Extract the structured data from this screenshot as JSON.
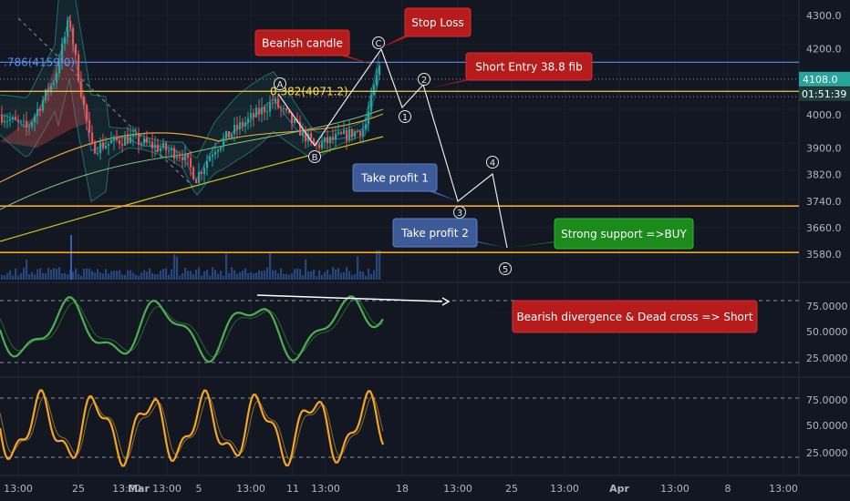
{
  "chart_data": [
    {
      "type": "candlestick",
      "panel": "price",
      "y_axis": {
        "min": 3520,
        "max": 4340,
        "ticks": [
          "4300.0",
          "4200.0",
          "4100.0",
          "4000.0",
          "3900.0",
          "3820.0",
          "3740.0",
          "3660.0",
          "3580.0"
        ]
      },
      "last_price": {
        "label": "4108.0",
        "value": 4108.0,
        "color": "#26a69a"
      },
      "countdown": "01:51:39",
      "fib_label": ".786(4159.0)",
      "fib_label_2": "0.382(4071.2)",
      "wave_labels": [
        "A",
        "B",
        "C",
        "1",
        "2",
        "3",
        "4",
        "5"
      ],
      "horizontal_levels": [
        {
          "value": 4159.0,
          "color": "#5b8dee"
        },
        {
          "value": 4071.2,
          "color": "#f7c948"
        },
        {
          "value": 3725,
          "color": "#f7a823"
        },
        {
          "value": 3585,
          "color": "#f7a823"
        }
      ],
      "annotations": [
        {
          "text": "Bearish candle",
          "style": "red"
        },
        {
          "text": "Stop Loss",
          "style": "red"
        },
        {
          "text": "Short Entry 38.8 fib",
          "style": "red"
        },
        {
          "text": "Take profit 1",
          "style": "blue"
        },
        {
          "text": "Take profit 2",
          "style": "blue"
        },
        {
          "text": "Strong support =>BUY",
          "style": "green"
        }
      ]
    },
    {
      "type": "line",
      "panel": "indicator-1",
      "y_axis": {
        "ticks": [
          "75.0000",
          "50.0000",
          "25.0000"
        ]
      },
      "annotation": {
        "text": "Bearish divergence & Dead cross => Short",
        "style": "red"
      }
    },
    {
      "type": "line",
      "panel": "indicator-2",
      "y_axis": {
        "ticks": [
          "75.0000",
          "50.0000",
          "25.0000"
        ]
      }
    }
  ],
  "x_axis": {
    "ticks": [
      "13:00",
      "25",
      "13:00",
      "Mar",
      "13:00",
      "5",
      "13:00",
      "11",
      "13:00",
      "18",
      "13:00",
      "25",
      "13:00",
      "Apr",
      "13:00",
      "8",
      "13:00"
    ]
  },
  "colors": {
    "background": "#131722",
    "bull": "#26a69a",
    "bear": "#ef5350",
    "red_box": "#b71c1c",
    "blue_box": "#3d5a99",
    "green_box": "#1b8c1b",
    "osc_green": "#4caf50",
    "osc_orange": "#f5a623"
  }
}
